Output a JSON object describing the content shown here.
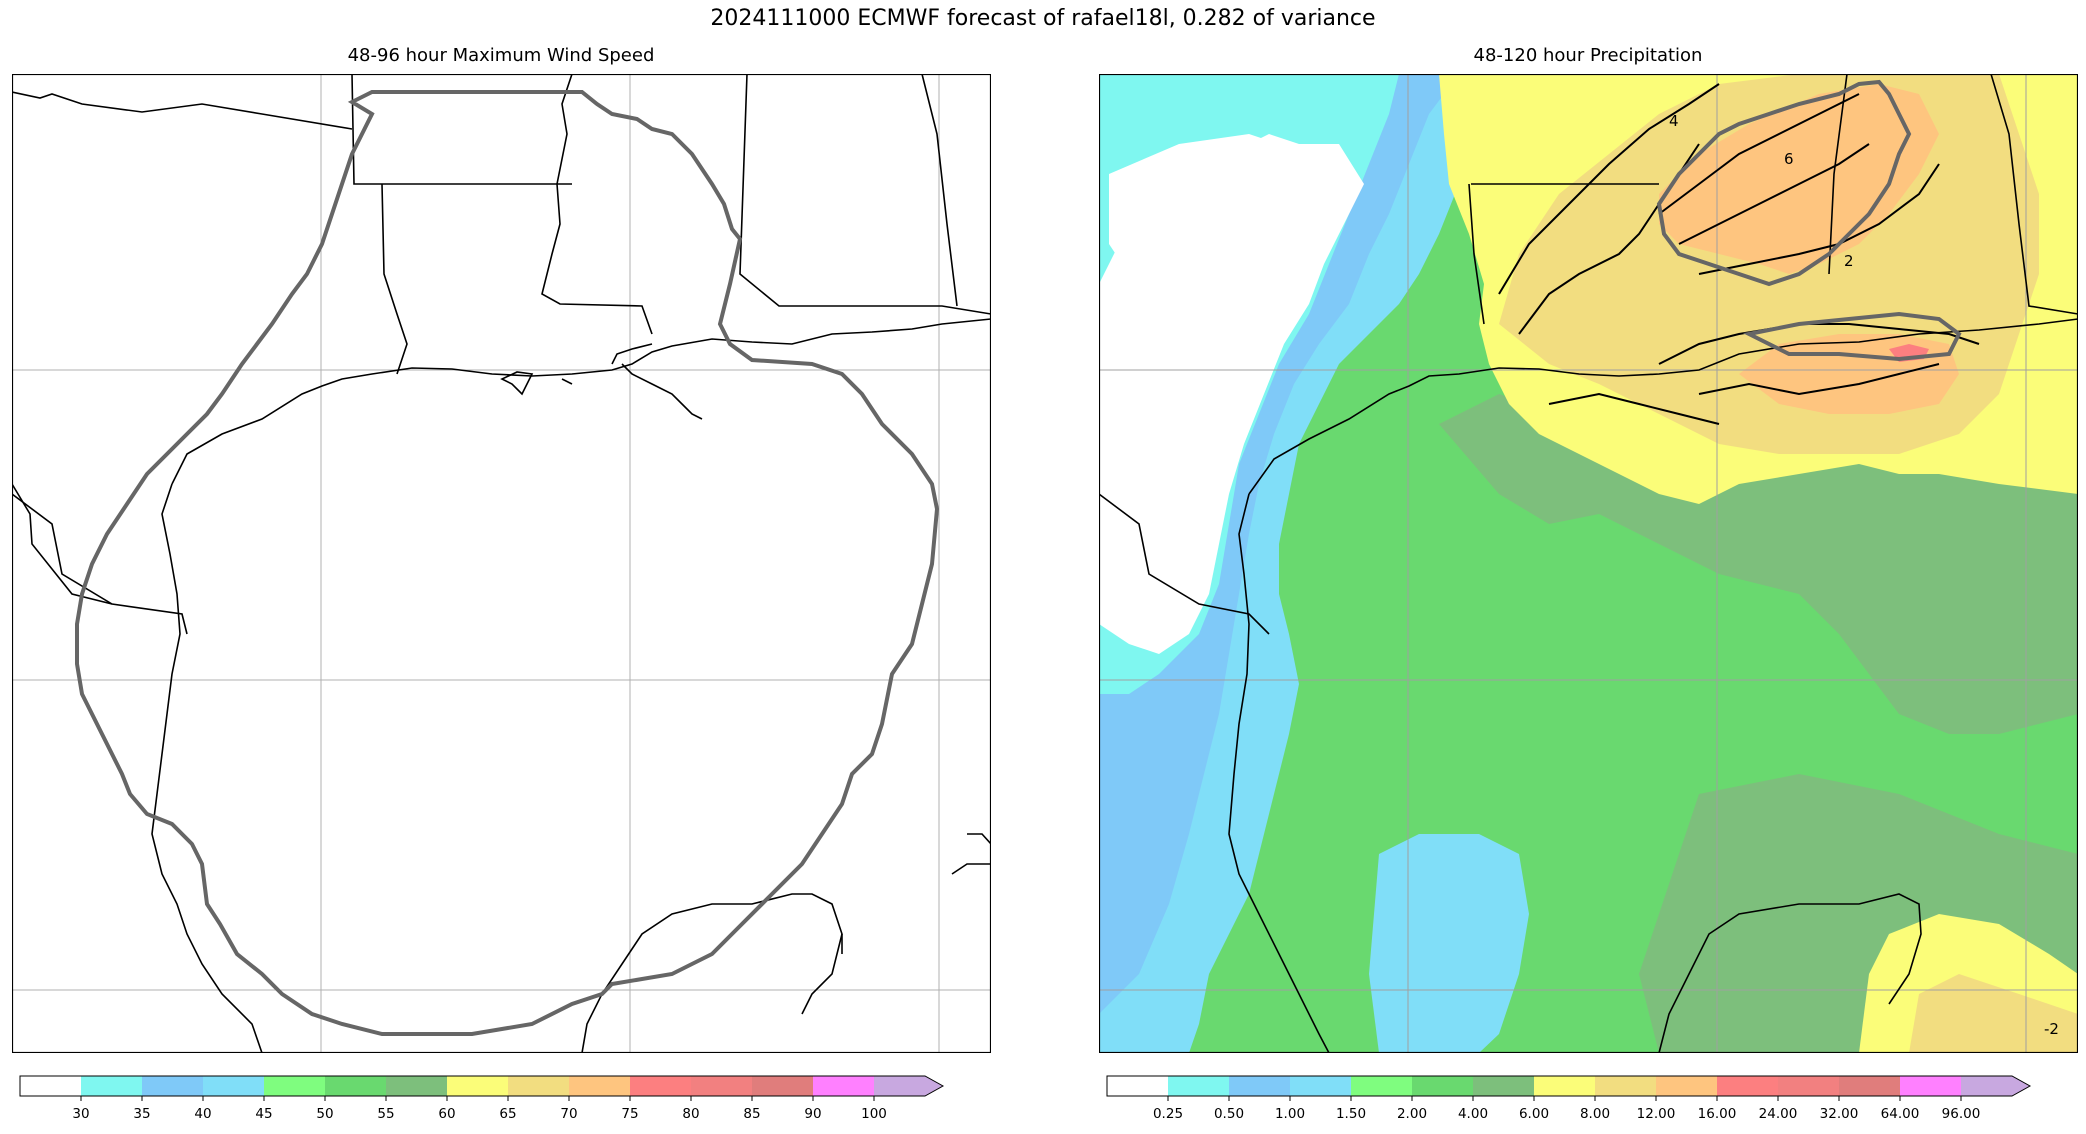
{
  "figure": {
    "title": "2024111000 ECMWF forecast of rafael18l, 0.282 of variance"
  },
  "panels": {
    "left": {
      "title": "48-96 hour Maximum Wind Speed"
    },
    "right": {
      "title": "48-120 hour Precipitation",
      "contour_labels": [
        "4",
        "6",
        "2",
        "-2"
      ]
    }
  },
  "colorbars": {
    "wind": {
      "ticks": [
        "30",
        "35",
        "40",
        "45",
        "50",
        "55",
        "60",
        "65",
        "70",
        "75",
        "80",
        "85",
        "90",
        "100"
      ],
      "colors": [
        "#ffffff",
        "#7ff7f0",
        "#7fc9f8",
        "#80def8",
        "#7ffd7f",
        "#69d96f",
        "#7dbf7c",
        "#fbfd79",
        "#f2dd80",
        "#fec57f",
        "#fc7f80",
        "#f28080",
        "#e07d7c",
        "#ff80ff",
        "#c8a8e0"
      ]
    },
    "precip": {
      "ticks": [
        "0.25",
        "0.50",
        "1.00",
        "1.50",
        "2.00",
        "4.00",
        "6.00",
        "8.00",
        "12.00",
        "16.00",
        "24.00",
        "32.00",
        "64.00",
        "96.00"
      ],
      "colors": [
        "#ffffff",
        "#7ff7f0",
        "#7fc9f8",
        "#80def8",
        "#7ffd7f",
        "#69d96f",
        "#7dbf7c",
        "#fbfd79",
        "#f2dd80",
        "#fec57f",
        "#fc7f80",
        "#f28080",
        "#e07d7c",
        "#ff80ff",
        "#c8a8e0"
      ]
    }
  }
}
